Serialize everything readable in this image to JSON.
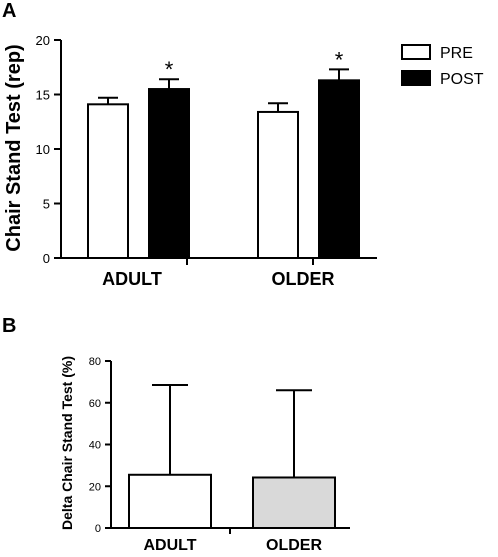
{
  "chart_data": [
    {
      "panel_label": "A",
      "type": "bar",
      "ylabel": "Chair Stand Test (rep)",
      "ylim": [
        0,
        20
      ],
      "yticks": [
        "0",
        "5",
        "10",
        "15",
        "20"
      ],
      "categories": [
        "ADULT",
        "OLDER"
      ],
      "legend_position": "top-right",
      "series": [
        {
          "name": "PRE",
          "color": "#ffffff",
          "values": [
            14.1,
            13.4
          ],
          "errors": [
            0.6,
            0.8
          ]
        },
        {
          "name": "POST",
          "color": "#000000",
          "values": [
            15.5,
            16.3
          ],
          "errors": [
            0.9,
            1.0
          ]
        }
      ],
      "annotations": [
        {
          "text": "*",
          "series": "POST",
          "category": "ADULT"
        },
        {
          "text": "*",
          "series": "POST",
          "category": "OLDER"
        }
      ]
    },
    {
      "panel_label": "B",
      "type": "bar",
      "ylabel": "Delta Chair Stand Test (%)",
      "ylim": [
        0,
        80
      ],
      "yticks": [
        "0",
        "20",
        "40",
        "60",
        "80"
      ],
      "categories": [
        "ADULT",
        "OLDER"
      ],
      "colors": [
        "#ffffff",
        "#d9d9d9"
      ],
      "values": [
        25.5,
        24.2
      ],
      "errors": [
        43,
        41.8
      ]
    }
  ]
}
